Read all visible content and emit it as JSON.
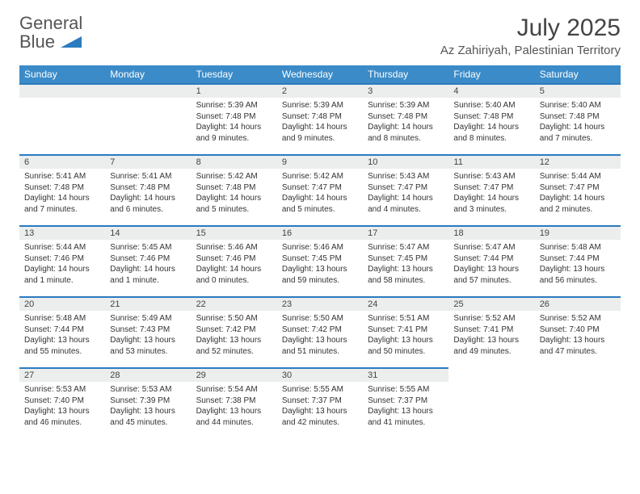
{
  "logo": {
    "text1": "General",
    "text2": "Blue"
  },
  "title": "July 2025",
  "location": "Az Zahiriyah, Palestinian Territory",
  "colors": {
    "header_bg": "#3b8bc8",
    "header_fg": "#ffffff",
    "accent": "#2b7bbf",
    "daynum_bg": "#eceded",
    "text": "#333333"
  },
  "day_headers": [
    "Sunday",
    "Monday",
    "Tuesday",
    "Wednesday",
    "Thursday",
    "Friday",
    "Saturday"
  ],
  "first_weekday_index": 2,
  "days": [
    {
      "n": 1,
      "sunrise": "5:39 AM",
      "sunset": "7:48 PM",
      "daylight": "14 hours and 9 minutes."
    },
    {
      "n": 2,
      "sunrise": "5:39 AM",
      "sunset": "7:48 PM",
      "daylight": "14 hours and 9 minutes."
    },
    {
      "n": 3,
      "sunrise": "5:39 AM",
      "sunset": "7:48 PM",
      "daylight": "14 hours and 8 minutes."
    },
    {
      "n": 4,
      "sunrise": "5:40 AM",
      "sunset": "7:48 PM",
      "daylight": "14 hours and 8 minutes."
    },
    {
      "n": 5,
      "sunrise": "5:40 AM",
      "sunset": "7:48 PM",
      "daylight": "14 hours and 7 minutes."
    },
    {
      "n": 6,
      "sunrise": "5:41 AM",
      "sunset": "7:48 PM",
      "daylight": "14 hours and 7 minutes."
    },
    {
      "n": 7,
      "sunrise": "5:41 AM",
      "sunset": "7:48 PM",
      "daylight": "14 hours and 6 minutes."
    },
    {
      "n": 8,
      "sunrise": "5:42 AM",
      "sunset": "7:48 PM",
      "daylight": "14 hours and 5 minutes."
    },
    {
      "n": 9,
      "sunrise": "5:42 AM",
      "sunset": "7:47 PM",
      "daylight": "14 hours and 5 minutes."
    },
    {
      "n": 10,
      "sunrise": "5:43 AM",
      "sunset": "7:47 PM",
      "daylight": "14 hours and 4 minutes."
    },
    {
      "n": 11,
      "sunrise": "5:43 AM",
      "sunset": "7:47 PM",
      "daylight": "14 hours and 3 minutes."
    },
    {
      "n": 12,
      "sunrise": "5:44 AM",
      "sunset": "7:47 PM",
      "daylight": "14 hours and 2 minutes."
    },
    {
      "n": 13,
      "sunrise": "5:44 AM",
      "sunset": "7:46 PM",
      "daylight": "14 hours and 1 minute."
    },
    {
      "n": 14,
      "sunrise": "5:45 AM",
      "sunset": "7:46 PM",
      "daylight": "14 hours and 1 minute."
    },
    {
      "n": 15,
      "sunrise": "5:46 AM",
      "sunset": "7:46 PM",
      "daylight": "14 hours and 0 minutes."
    },
    {
      "n": 16,
      "sunrise": "5:46 AM",
      "sunset": "7:45 PM",
      "daylight": "13 hours and 59 minutes."
    },
    {
      "n": 17,
      "sunrise": "5:47 AM",
      "sunset": "7:45 PM",
      "daylight": "13 hours and 58 minutes."
    },
    {
      "n": 18,
      "sunrise": "5:47 AM",
      "sunset": "7:44 PM",
      "daylight": "13 hours and 57 minutes."
    },
    {
      "n": 19,
      "sunrise": "5:48 AM",
      "sunset": "7:44 PM",
      "daylight": "13 hours and 56 minutes."
    },
    {
      "n": 20,
      "sunrise": "5:48 AM",
      "sunset": "7:44 PM",
      "daylight": "13 hours and 55 minutes."
    },
    {
      "n": 21,
      "sunrise": "5:49 AM",
      "sunset": "7:43 PM",
      "daylight": "13 hours and 53 minutes."
    },
    {
      "n": 22,
      "sunrise": "5:50 AM",
      "sunset": "7:42 PM",
      "daylight": "13 hours and 52 minutes."
    },
    {
      "n": 23,
      "sunrise": "5:50 AM",
      "sunset": "7:42 PM",
      "daylight": "13 hours and 51 minutes."
    },
    {
      "n": 24,
      "sunrise": "5:51 AM",
      "sunset": "7:41 PM",
      "daylight": "13 hours and 50 minutes."
    },
    {
      "n": 25,
      "sunrise": "5:52 AM",
      "sunset": "7:41 PM",
      "daylight": "13 hours and 49 minutes."
    },
    {
      "n": 26,
      "sunrise": "5:52 AM",
      "sunset": "7:40 PM",
      "daylight": "13 hours and 47 minutes."
    },
    {
      "n": 27,
      "sunrise": "5:53 AM",
      "sunset": "7:40 PM",
      "daylight": "13 hours and 46 minutes."
    },
    {
      "n": 28,
      "sunrise": "5:53 AM",
      "sunset": "7:39 PM",
      "daylight": "13 hours and 45 minutes."
    },
    {
      "n": 29,
      "sunrise": "5:54 AM",
      "sunset": "7:38 PM",
      "daylight": "13 hours and 44 minutes."
    },
    {
      "n": 30,
      "sunrise": "5:55 AM",
      "sunset": "7:37 PM",
      "daylight": "13 hours and 42 minutes."
    },
    {
      "n": 31,
      "sunrise": "5:55 AM",
      "sunset": "7:37 PM",
      "daylight": "13 hours and 41 minutes."
    }
  ],
  "labels": {
    "sunrise": "Sunrise:",
    "sunset": "Sunset:",
    "daylight": "Daylight:"
  }
}
